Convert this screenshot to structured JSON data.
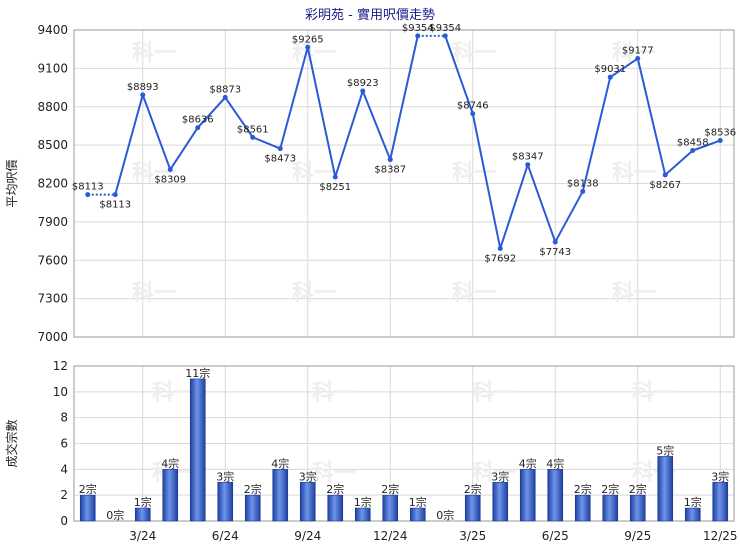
{
  "chart_data": [
    {
      "type": "line",
      "title": "彩明苑 - 實用呎價走勢",
      "ylabel": "平均呎價",
      "ylim": [
        7000,
        9400
      ],
      "yticks": [
        7000,
        7300,
        7600,
        7900,
        8200,
        8500,
        8800,
        9100,
        9400
      ],
      "x_tick_labels": [
        "3/24",
        "6/24",
        "9/24",
        "12/24",
        "3/25",
        "6/25",
        "9/25",
        "12/25"
      ],
      "x_tick_index": [
        2,
        5,
        8,
        11,
        14,
        17,
        20,
        23
      ],
      "n_points": 24,
      "series": [
        {
          "values": [
            8113,
            8113,
            8893,
            8309,
            8636,
            8873,
            8561,
            8473,
            9265,
            8251,
            8923,
            8387,
            9354,
            9354,
            8746,
            7692,
            8347,
            7743,
            8138,
            9031,
            9177,
            8267,
            8458,
            8536
          ],
          "labels": [
            "$8113",
            "$8113",
            "$8893",
            "$8309",
            "$8636",
            "$8873",
            "$8561",
            "$8473",
            "$9265",
            "$8251",
            "$8923",
            "$8387",
            "$9354",
            "$9354",
            "$8746",
            "$7692",
            "$8347",
            "$7743",
            "$8138",
            "$9031",
            "$9177",
            "$8267",
            "$8458",
            "$8536"
          ],
          "dotted_segments": [
            0,
            12
          ]
        }
      ],
      "color": "#2a5bd7",
      "grid": true
    },
    {
      "type": "bar",
      "ylabel": "成交宗數",
      "ylim": [
        0,
        12
      ],
      "yticks": [
        0,
        2,
        4,
        6,
        8,
        10,
        12
      ],
      "x_tick_labels": [
        "3/24",
        "6/24",
        "9/24",
        "12/24",
        "3/25",
        "6/25",
        "9/25",
        "12/25"
      ],
      "series": [
        {
          "values": [
            2,
            0,
            1,
            4,
            11,
            3,
            2,
            4,
            3,
            2,
            1,
            2,
            1,
            0,
            2,
            3,
            4,
            4,
            2,
            2,
            2,
            5,
            1,
            3
          ],
          "labels": [
            "2宗",
            "0宗",
            "1宗",
            "4宗",
            "11宗",
            "3宗",
            "2宗",
            "4宗",
            "3宗",
            "2宗",
            "1宗",
            "2宗",
            "1宗",
            "0宗",
            "2宗",
            "3宗",
            "4宗",
            "4宗",
            "2宗",
            "2宗",
            "2宗",
            "5宗",
            "1宗",
            "3宗"
          ]
        }
      ],
      "color": "#2a5bd7",
      "grid": true
    }
  ],
  "watermark": "科一"
}
